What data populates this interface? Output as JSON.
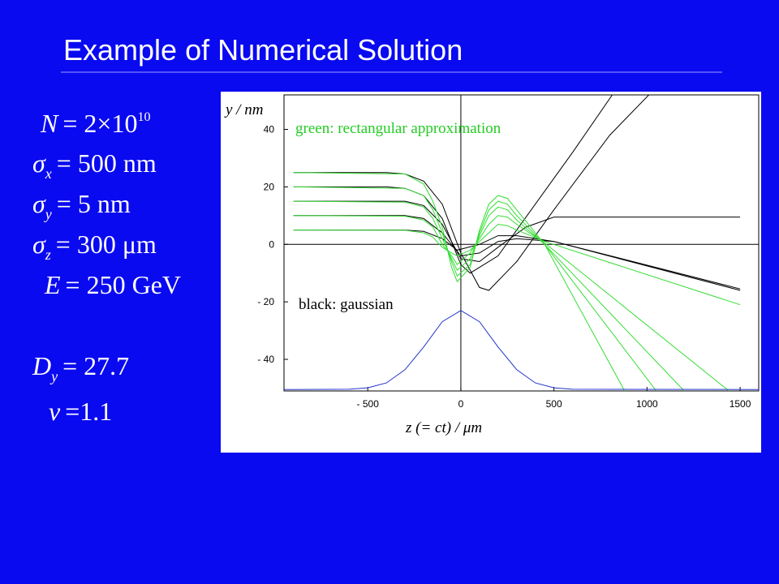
{
  "slide": {
    "title": "Example of Numerical Solution",
    "equations": [
      {
        "symbol": "N",
        "rhs": "= 2×10",
        "rhs_sup": "10"
      },
      {
        "symbol": "σ",
        "sub": "x",
        "rhs": "= 500 nm"
      },
      {
        "symbol": "σ",
        "sub": "y",
        "rhs": "= 5 nm"
      },
      {
        "symbol": "σ",
        "sub": "z",
        "rhs": "= 300 μm"
      },
      {
        "symbol": "E",
        "rhs": "= 250 GeV"
      },
      {
        "symbol": "D",
        "sub": "y",
        "rhs": "= 27.7"
      },
      {
        "symbol": "ν",
        "rhs": "=1.1"
      }
    ]
  },
  "chart_data": {
    "type": "line",
    "xlabel": "z (= ct) / μm",
    "ylabel": "y / nm",
    "annotations": [
      {
        "text": "green: rectangular approximation",
        "color": "#22cc22"
      },
      {
        "text": "black: gaussian",
        "color": "#000000"
      }
    ],
    "xlim": [
      -950,
      1600
    ],
    "ylim": [
      -51,
      52
    ],
    "xticks": [
      {
        "value": -500,
        "label": "- 500"
      },
      0,
      500,
      1000,
      1500
    ],
    "yticks": [
      {
        "value": -40,
        "label": "- 40"
      },
      {
        "value": -20,
        "label": "- 20"
      },
      0,
      20,
      40
    ],
    "series": [
      {
        "color": "#000000",
        "x": [
          -900,
          -400,
          -300,
          -200,
          -100,
          0,
          100,
          150,
          300,
          500,
          800,
          1010
        ],
        "values": [
          25,
          25,
          24.5,
          22,
          14,
          -3,
          -15,
          -16,
          -6,
          12,
          38,
          52
        ]
      },
      {
        "color": "#000000",
        "x": [
          -900,
          -400,
          -300,
          -200,
          -100,
          0,
          50,
          200,
          400,
          600,
          813
        ],
        "values": [
          20,
          20,
          19.5,
          17,
          9,
          -7,
          -10,
          -4,
          14,
          32,
          52
        ]
      },
      {
        "color": "#000000",
        "x": [
          -900,
          -300,
          -200,
          -100,
          0,
          100,
          200,
          350,
          500,
          1500
        ],
        "values": [
          15,
          15,
          13.5,
          7,
          -5,
          -6,
          -1,
          6,
          9.5,
          9.5
        ]
      },
      {
        "color": "#000000",
        "x": [
          -900,
          -300,
          -200,
          -100,
          0,
          100,
          200,
          300,
          500,
          1500
        ],
        "values": [
          10,
          10,
          9,
          4,
          -4,
          -3,
          1,
          2,
          1,
          -15.5
        ]
      },
      {
        "color": "#000000",
        "x": [
          -900,
          -300,
          -200,
          -100,
          -20,
          100,
          200,
          300,
          500,
          1500
        ],
        "values": [
          5,
          5,
          4.5,
          2,
          -2,
          0,
          3,
          3,
          1,
          -16
        ]
      },
      {
        "color": "#33dd33",
        "x": [
          -900,
          -300,
          -200,
          -150,
          -100,
          -50,
          -20,
          50,
          100,
          150,
          200,
          250,
          300,
          450,
          880
        ],
        "values": [
          25,
          24.5,
          21,
          15,
          6,
          -8,
          -13,
          -8,
          5,
          14,
          17,
          16,
          12,
          0,
          -51
        ]
      },
      {
        "color": "#33dd33",
        "x": [
          -900,
          -300,
          -200,
          -150,
          -100,
          -50,
          -20,
          50,
          100,
          150,
          200,
          250,
          300,
          450,
          1050
        ],
        "values": [
          20,
          19.5,
          17,
          12,
          4,
          -6,
          -11,
          -7,
          4,
          12,
          15,
          14,
          10,
          0,
          -51
        ]
      },
      {
        "color": "#33dd33",
        "x": [
          -900,
          -300,
          -200,
          -150,
          -100,
          -50,
          -20,
          50,
          100,
          150,
          200,
          250,
          300,
          450,
          1200
        ],
        "values": [
          15,
          14.7,
          13,
          9,
          2,
          -5,
          -9,
          -5,
          3,
          10,
          13,
          12,
          8.5,
          0,
          -51
        ]
      },
      {
        "color": "#33dd33",
        "x": [
          -900,
          -300,
          -200,
          -150,
          -100,
          -50,
          -20,
          50,
          100,
          150,
          200,
          250,
          300,
          450,
          1440
        ],
        "values": [
          10,
          9.8,
          8.5,
          6,
          0,
          -4,
          -7,
          -3,
          2,
          7,
          10,
          9.5,
          7,
          0.5,
          -51
        ]
      },
      {
        "color": "#33dd33",
        "x": [
          -900,
          -300,
          -200,
          -150,
          -100,
          -50,
          -20,
          50,
          100,
          150,
          200,
          250,
          300,
          450,
          1500
        ],
        "values": [
          5,
          4.9,
          4,
          2.5,
          -1,
          -3,
          -4,
          -2,
          1,
          4,
          7,
          6.5,
          5,
          1,
          -21
        ]
      },
      {
        "color": "#2233cc",
        "x": [
          -950,
          -600,
          -500,
          -400,
          -300,
          -200,
          -100,
          0,
          100,
          200,
          300,
          400,
          500,
          600,
          1600
        ],
        "values": [
          -50.5,
          -50.4,
          -49.9,
          -48.2,
          -43.6,
          -35.7,
          -26.9,
          -23,
          -26.9,
          -35.7,
          -43.6,
          -48.2,
          -49.9,
          -50.4,
          -50.5
        ]
      }
    ]
  }
}
